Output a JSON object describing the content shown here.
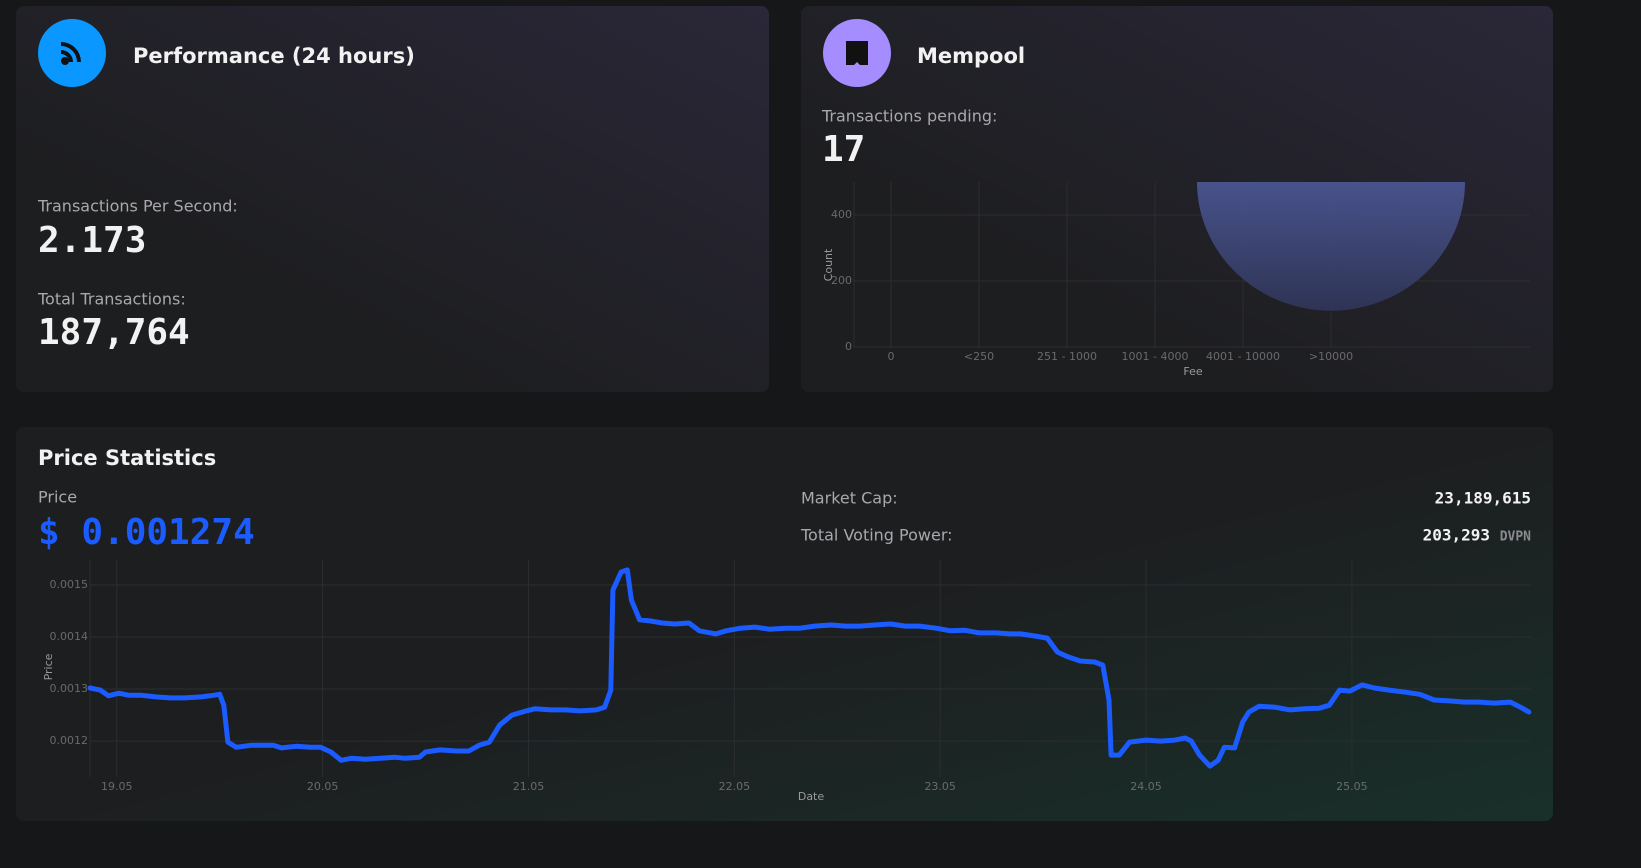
{
  "performance": {
    "title": "Performance (24 hours)",
    "tps_label": "Transactions Per Second:",
    "tps_value": "2.173",
    "total_label": "Total Transactions:",
    "total_value": "187,764"
  },
  "mempool": {
    "title": "Mempool",
    "pending_label": "Transactions pending:",
    "pending_value": "17"
  },
  "price_statistics": {
    "title": "Price Statistics",
    "price_label": "Price",
    "price_value": "$ 0.001274",
    "market_cap_label": "Market Cap:",
    "market_cap_value": "23,189,615",
    "voting_power_label": "Total Voting Power:",
    "voting_power_value": "203,293",
    "voting_power_unit": "DVPN"
  },
  "chart_data": [
    {
      "type": "bar",
      "categories": [
        "0",
        "<250",
        "251 - 1000",
        "1001 - 4000",
        "4001 - 10000",
        ">10000"
      ],
      "values": [
        0,
        0,
        0,
        0,
        0,
        500
      ],
      "color": "#4a5590",
      "ylim": [
        0,
        500
      ],
      "yticks": [
        0,
        200,
        400
      ],
      "xlabel": "Fee",
      "ylabel": "Count",
      "grid": true
    },
    {
      "type": "line",
      "xlabel": "Date",
      "ylabel": "Price",
      "color": "#1a5cff",
      "grid": true,
      "xlim": [
        18.87,
        25.87
      ],
      "ylim": [
        0.001131,
        0.001548
      ],
      "xticks": [
        {
          "value": 19,
          "label": "19.05"
        },
        {
          "value": 20,
          "label": "20.05"
        },
        {
          "value": 21,
          "label": "21.05"
        },
        {
          "value": 22,
          "label": "22.05"
        },
        {
          "value": 23,
          "label": "23.05"
        },
        {
          "value": 24,
          "label": "24.05"
        },
        {
          "value": 25,
          "label": "25.05"
        }
      ],
      "yticks": [
        0.0012,
        0.0013,
        0.0014,
        0.0015
      ],
      "x": [
        18.87,
        18.92,
        18.96,
        19.01,
        19.06,
        19.12,
        19.19,
        19.26,
        19.33,
        19.41,
        19.47,
        19.5,
        19.52,
        19.54,
        19.58,
        19.65,
        19.71,
        19.76,
        19.8,
        19.87,
        19.94,
        19.99,
        20.04,
        20.09,
        20.14,
        20.21,
        20.28,
        20.35,
        20.4,
        20.47,
        20.5,
        20.57,
        20.65,
        20.71,
        20.76,
        20.81,
        20.86,
        20.92,
        20.99,
        21.03,
        21.11,
        21.18,
        21.25,
        21.33,
        21.37,
        21.4,
        21.41,
        21.45,
        21.48,
        21.5,
        21.54,
        21.59,
        21.65,
        21.71,
        21.78,
        21.83,
        21.91,
        21.96,
        22.03,
        22.1,
        22.17,
        22.25,
        22.32,
        22.39,
        22.47,
        22.54,
        22.61,
        22.68,
        22.76,
        22.83,
        22.9,
        22.98,
        23.05,
        23.12,
        23.19,
        23.27,
        23.34,
        23.39,
        23.46,
        23.52,
        23.57,
        23.62,
        23.68,
        23.75,
        23.79,
        23.82,
        23.83,
        23.87,
        23.92,
        24.0,
        24.07,
        24.14,
        24.19,
        24.22,
        24.26,
        24.31,
        24.35,
        24.38,
        24.43,
        24.47,
        24.5,
        24.55,
        24.63,
        24.7,
        24.77,
        24.84,
        24.89,
        24.94,
        24.99,
        25.05,
        25.11,
        25.18,
        25.26,
        25.33,
        25.4,
        25.48,
        25.55,
        25.62,
        25.69,
        25.77,
        25.82,
        25.86
      ],
      "values": [
        0.001302,
        0.001298,
        0.001287,
        0.001292,
        0.001288,
        0.001288,
        0.001285,
        0.001283,
        0.001283,
        0.001285,
        0.001288,
        0.00129,
        0.001269,
        0.001198,
        0.001188,
        0.001192,
        0.001192,
        0.001192,
        0.001187,
        0.00119,
        0.001188,
        0.001188,
        0.001179,
        0.001163,
        0.001167,
        0.001165,
        0.001167,
        0.001169,
        0.001167,
        0.001169,
        0.001179,
        0.001183,
        0.001181,
        0.001181,
        0.001192,
        0.001198,
        0.001231,
        0.00125,
        0.001258,
        0.001262,
        0.00126,
        0.00126,
        0.001258,
        0.00126,
        0.001265,
        0.001298,
        0.00149,
        0.001525,
        0.001529,
        0.001471,
        0.001433,
        0.001431,
        0.001427,
        0.001425,
        0.001427,
        0.001412,
        0.001406,
        0.001412,
        0.001417,
        0.001419,
        0.001415,
        0.001417,
        0.001417,
        0.001421,
        0.001423,
        0.001421,
        0.001421,
        0.001423,
        0.001425,
        0.001421,
        0.001421,
        0.001417,
        0.001412,
        0.001413,
        0.001408,
        0.001408,
        0.001406,
        0.001406,
        0.001402,
        0.001398,
        0.001371,
        0.001362,
        0.001354,
        0.001352,
        0.001346,
        0.001279,
        0.001173,
        0.001173,
        0.001198,
        0.001202,
        0.0012,
        0.001202,
        0.001206,
        0.0012,
        0.001173,
        0.001152,
        0.001163,
        0.001188,
        0.001187,
        0.001237,
        0.001256,
        0.001267,
        0.001265,
        0.00126,
        0.001262,
        0.001263,
        0.001269,
        0.001298,
        0.001296,
        0.001308,
        0.001302,
        0.001298,
        0.001294,
        0.00129,
        0.001279,
        0.001277,
        0.001275,
        0.001275,
        0.001273,
        0.001275,
        0.001265,
        0.001256
      ]
    }
  ]
}
